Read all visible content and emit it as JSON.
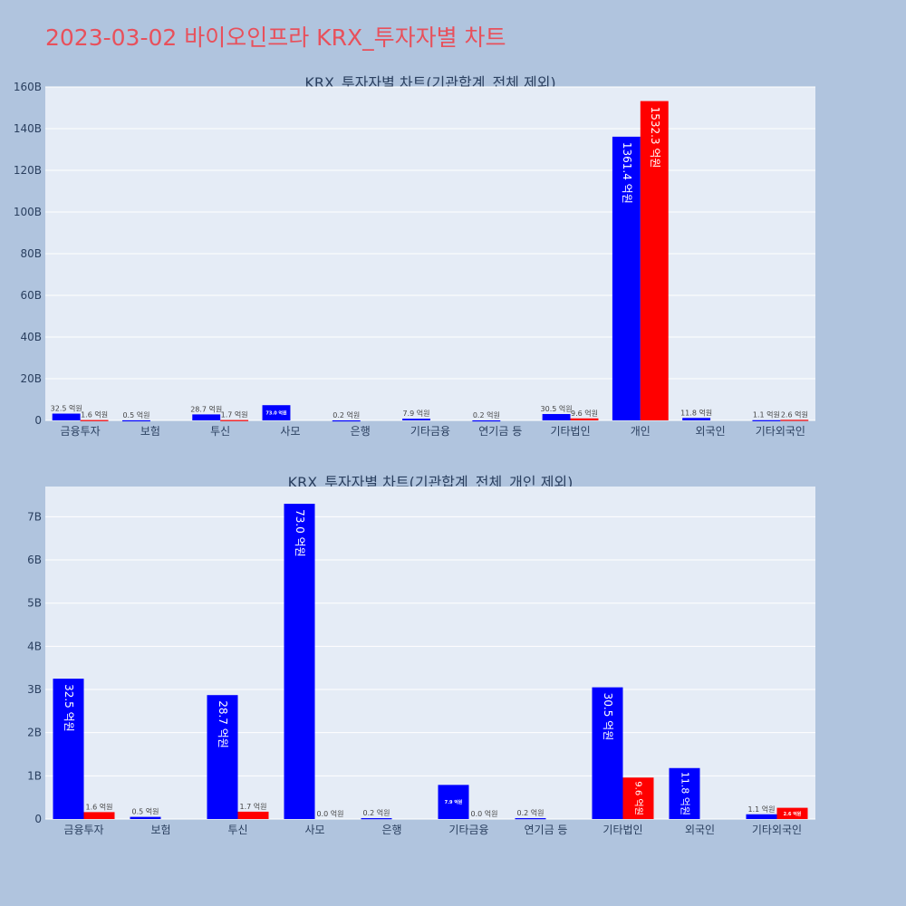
{
  "page": {
    "title": "2023-03-02 바이오인프라 KRX_투자자별 차트",
    "colors": {
      "background": "#b0c4de",
      "plot_bg": "#e5ecf6",
      "title": "#e8505b",
      "buy": "#0000ff",
      "sell": "#ff0000"
    }
  },
  "chart_data": [
    {
      "type": "bar",
      "title": "KRX_투자자별 차트(기관합계_전체 제외)",
      "categories": [
        "금융투자",
        "보험",
        "투신",
        "사모",
        "은행",
        "기타금융",
        "연기금 등",
        "기타법인",
        "개인",
        "외국인",
        "기타외국인"
      ],
      "series": [
        {
          "color": "#0000ff",
          "values": [
            3.25,
            0.05,
            2.87,
            7.3,
            0.02,
            0.79,
            0.02,
            3.05,
            136.14,
            1.18,
            0.11
          ],
          "labels": [
            "32.5 억원",
            "0.5 억원",
            "28.7 억원",
            "73.0 억원",
            "0.2 억원",
            "7.9 억원",
            "0.2 억원",
            "30.5 억원",
            "1361.4 억원",
            "11.8 억원",
            "1.1 억원"
          ]
        },
        {
          "color": "#ff0000",
          "values": [
            0.16,
            null,
            0.17,
            0,
            null,
            0,
            null,
            0.96,
            153.23,
            null,
            0.26
          ],
          "labels": [
            "1.6 억원",
            "",
            "1.7 억원",
            "",
            "",
            "",
            "",
            "9.6 억원",
            "1532.3 억원",
            "",
            "2.6 억원"
          ]
        }
      ],
      "y_ticks": [
        "0",
        "20B",
        "40B",
        "60B",
        "80B",
        "100B",
        "120B",
        "140B",
        "160B"
      ],
      "ylim": [
        0,
        160
      ],
      "grid": true
    },
    {
      "type": "bar",
      "title": "KRX_투자자별 차트(기관합계_전체_개인 제외)",
      "categories": [
        "금융투자",
        "보험",
        "투신",
        "사모",
        "은행",
        "기타금융",
        "연기금 등",
        "기타법인",
        "외국인",
        "기타외국인"
      ],
      "series": [
        {
          "color": "#0000ff",
          "values": [
            3.25,
            0.05,
            2.87,
            7.3,
            0.02,
            0.79,
            0.02,
            3.05,
            1.18,
            0.11
          ],
          "labels": [
            "32.5 억원",
            "0.5 억원",
            "28.7 억원",
            "73.0 억원",
            "0.2 억원",
            "7.9 억원",
            "0.2 억원",
            "30.5 억원",
            "11.8 억원",
            "1.1 억원"
          ]
        },
        {
          "color": "#ff0000",
          "values": [
            0.16,
            null,
            0.17,
            0,
            null,
            0,
            null,
            0.96,
            null,
            0.26
          ],
          "labels": [
            "1.6 억원",
            "",
            "1.7 억원",
            "0.0 억원",
            "",
            "0.0 억원",
            "",
            "9.6 억원",
            "",
            "2.6 억원"
          ]
        }
      ],
      "y_ticks": [
        "0",
        "1B",
        "2B",
        "3B",
        "4B",
        "5B",
        "6B",
        "7B"
      ],
      "ylim": [
        0,
        7.7
      ],
      "grid": true
    }
  ]
}
